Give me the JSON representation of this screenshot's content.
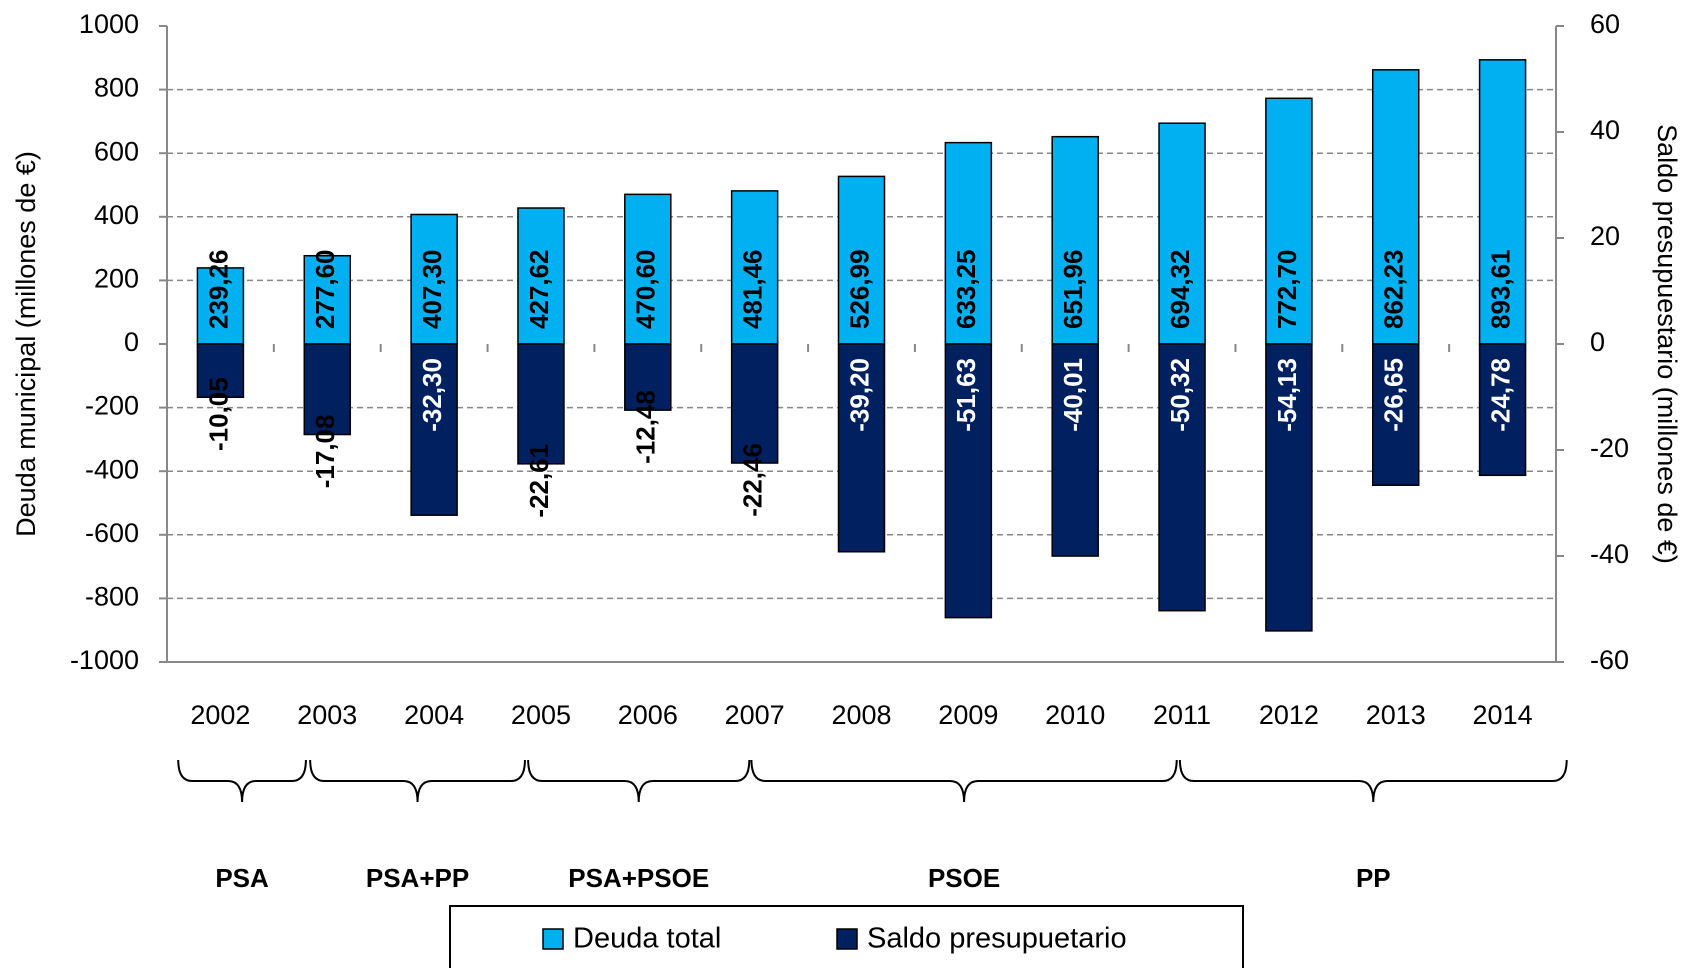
{
  "chart_data": {
    "type": "bar",
    "categories": [
      "2002",
      "2003",
      "2004",
      "2005",
      "2006",
      "2007",
      "2008",
      "2009",
      "2010",
      "2011",
      "2012",
      "2013",
      "2014"
    ],
    "series": [
      {
        "name": "Deuda total",
        "color": "#00b0f0",
        "values": [
          239.26,
          277.6,
          407.3,
          427.62,
          470.6,
          481.46,
          526.99,
          633.25,
          651.96,
          694.32,
          772.7,
          862.23,
          893.61
        ],
        "value_labels": [
          "239,26",
          "277,60",
          "407,30",
          "427,62",
          "470,60",
          "481,46",
          "526,99",
          "633,25",
          "651,96",
          "694,32",
          "772,70",
          "862,23",
          "893,61"
        ]
      },
      {
        "name": "Saldo presupuetario",
        "color": "#002060",
        "axis": "y2",
        "values": [
          -10.05,
          -17.08,
          -32.3,
          -22.61,
          -12.48,
          -22.46,
          -39.2,
          -51.63,
          -40.01,
          -50.32,
          -54.13,
          -26.65,
          -24.78
        ],
        "value_labels": [
          "-10,05",
          "-17,08",
          "-32,30",
          "-22,61",
          "-12,48",
          "-22,46",
          "-39,20",
          "-51,63",
          "-40,01",
          "-50,32",
          "-54,13",
          "-26,65",
          "-24,78"
        ]
      }
    ],
    "ylabel": "Deuda municipal (millones de €)",
    "y2label": "Saldo presupuestario (millones de €)",
    "ylim": [
      -1000,
      1000
    ],
    "yticks": [
      -1000,
      -800,
      -600,
      -400,
      -200,
      0,
      200,
      400,
      600,
      800,
      1000
    ],
    "y2lim": [
      -60,
      60
    ],
    "y2ticks": [
      -60,
      -40,
      -20,
      0,
      20,
      40,
      60
    ],
    "grid": true,
    "periods": [
      "PSA",
      "PSA+PP",
      "PSA+PSOE",
      "PSOE",
      "PP"
    ]
  }
}
